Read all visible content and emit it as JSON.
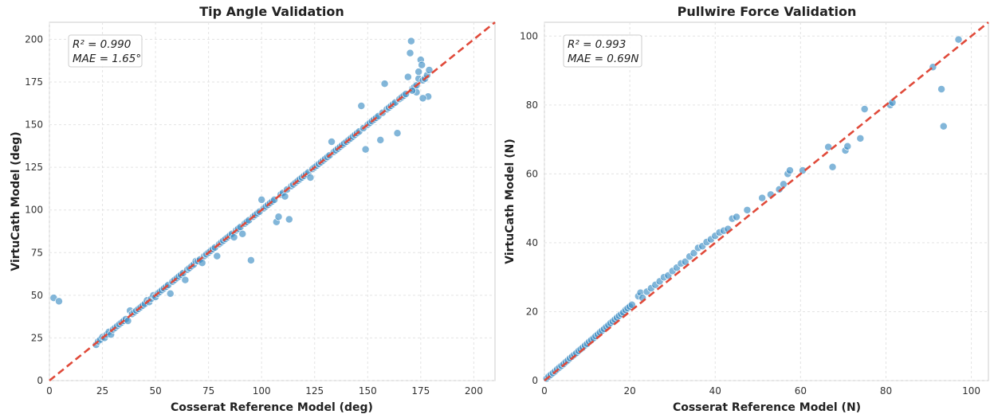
{
  "chart_data": [
    {
      "type": "scatter",
      "title": "Tip Angle Validation",
      "xlabel": "Cosserat Reference Model (deg)",
      "ylabel": "VirtuCath Model (deg)",
      "xlim": [
        0,
        210
      ],
      "ylim": [
        0,
        210
      ],
      "xticks": [
        0,
        25,
        50,
        75,
        100,
        125,
        150,
        175,
        200
      ],
      "yticks": [
        0,
        25,
        50,
        75,
        100,
        125,
        150,
        175,
        200
      ],
      "grid": true,
      "identity_line": {
        "color": "#e04a3a",
        "style": "dashed"
      },
      "stats": {
        "r2": "R² = 0.990",
        "mae": "MAE = 1.65°"
      },
      "point_color": "#3f8fc4",
      "points": [
        [
          2,
          48.5
        ],
        [
          4.5,
          46.5
        ],
        [
          22,
          21
        ],
        [
          23,
          23
        ],
        [
          24,
          24
        ],
        [
          25,
          25.5
        ],
        [
          26,
          25
        ],
        [
          27,
          27
        ],
        [
          28,
          28.5
        ],
        [
          29,
          27
        ],
        [
          30,
          30
        ],
        [
          31,
          31
        ],
        [
          32,
          32
        ],
        [
          33,
          33
        ],
        [
          34,
          34
        ],
        [
          35,
          35
        ],
        [
          36,
          36
        ],
        [
          37,
          35
        ],
        [
          38,
          41
        ],
        [
          39,
          39
        ],
        [
          40,
          40
        ],
        [
          41,
          41
        ],
        [
          42,
          42
        ],
        [
          43,
          43
        ],
        [
          44,
          44
        ],
        [
          45,
          45
        ],
        [
          46,
          47
        ],
        [
          47,
          46
        ],
        [
          48,
          48
        ],
        [
          49,
          50
        ],
        [
          50,
          49
        ],
        [
          51,
          51
        ],
        [
          52,
          52
        ],
        [
          53,
          53
        ],
        [
          54,
          54
        ],
        [
          55,
          55
        ],
        [
          56,
          56
        ],
        [
          57,
          51
        ],
        [
          58,
          58
        ],
        [
          59,
          59
        ],
        [
          60,
          60
        ],
        [
          61,
          61
        ],
        [
          62,
          62
        ],
        [
          63,
          63
        ],
        [
          64,
          59
        ],
        [
          65,
          65
        ],
        [
          66,
          66
        ],
        [
          67,
          67
        ],
        [
          68,
          68
        ],
        [
          69,
          70
        ],
        [
          70,
          70
        ],
        [
          71,
          71
        ],
        [
          72,
          69
        ],
        [
          73,
          73
        ],
        [
          74,
          74
        ],
        [
          75,
          75
        ],
        [
          76,
          76
        ],
        [
          77,
          77
        ],
        [
          78,
          78
        ],
        [
          79,
          73
        ],
        [
          80,
          80
        ],
        [
          81,
          81
        ],
        [
          82,
          82
        ],
        [
          83,
          83
        ],
        [
          84,
          84
        ],
        [
          85,
          85
        ],
        [
          86,
          86
        ],
        [
          87,
          84
        ],
        [
          88,
          88
        ],
        [
          89,
          89
        ],
        [
          90,
          90
        ],
        [
          91,
          86
        ],
        [
          92,
          92
        ],
        [
          93,
          93
        ],
        [
          94,
          94
        ],
        [
          95,
          70.5
        ],
        [
          96,
          96
        ],
        [
          97,
          97
        ],
        [
          98,
          98
        ],
        [
          99,
          99
        ],
        [
          100,
          106
        ],
        [
          101,
          101
        ],
        [
          102,
          102
        ],
        [
          103,
          103
        ],
        [
          104,
          104
        ],
        [
          105,
          105
        ],
        [
          106,
          106
        ],
        [
          107,
          93
        ],
        [
          108,
          96
        ],
        [
          109,
          109
        ],
        [
          110,
          110
        ],
        [
          111,
          108
        ],
        [
          112,
          112
        ],
        [
          113,
          94.5
        ],
        [
          114,
          114
        ],
        [
          115,
          115
        ],
        [
          116,
          116
        ],
        [
          117,
          117
        ],
        [
          118,
          118
        ],
        [
          119,
          119
        ],
        [
          120,
          120
        ],
        [
          121,
          121
        ],
        [
          122,
          122
        ],
        [
          123,
          119
        ],
        [
          124,
          124
        ],
        [
          125,
          125
        ],
        [
          126,
          126
        ],
        [
          127,
          127
        ],
        [
          128,
          128
        ],
        [
          129,
          129
        ],
        [
          130,
          130
        ],
        [
          131,
          131
        ],
        [
          132,
          132
        ],
        [
          133,
          140
        ],
        [
          134,
          134
        ],
        [
          135,
          135
        ],
        [
          136,
          136
        ],
        [
          137,
          137
        ],
        [
          138,
          138
        ],
        [
          139,
          139
        ],
        [
          140,
          140
        ],
        [
          141,
          141
        ],
        [
          142,
          142
        ],
        [
          143,
          143
        ],
        [
          144,
          144
        ],
        [
          145,
          145
        ],
        [
          146,
          146
        ],
        [
          147,
          161
        ],
        [
          148,
          148
        ],
        [
          149,
          135.5
        ],
        [
          150,
          150
        ],
        [
          151,
          151
        ],
        [
          152,
          152
        ],
        [
          153,
          153
        ],
        [
          154,
          154
        ],
        [
          155,
          155
        ],
        [
          156,
          141
        ],
        [
          157,
          157
        ],
        [
          158,
          174
        ],
        [
          159,
          159
        ],
        [
          160,
          160
        ],
        [
          161,
          161
        ],
        [
          162,
          162
        ],
        [
          163,
          163
        ],
        [
          164,
          145
        ],
        [
          165,
          165
        ],
        [
          166,
          166
        ],
        [
          167,
          167
        ],
        [
          168,
          168
        ],
        [
          169,
          178
        ],
        [
          170,
          192
        ],
        [
          170.5,
          199
        ],
        [
          171,
          171
        ],
        [
          172,
          172
        ],
        [
          173,
          173
        ],
        [
          174,
          177
        ],
        [
          175,
          188
        ],
        [
          175.5,
          185
        ],
        [
          176,
          176
        ],
        [
          177,
          177
        ],
        [
          178,
          179
        ],
        [
          178.5,
          166.5
        ],
        [
          179,
          182
        ],
        [
          176,
          165.5
        ],
        [
          173,
          169
        ],
        [
          171,
          170
        ],
        [
          174,
          181
        ]
      ]
    },
    {
      "type": "scatter",
      "title": "Pullwire Force Validation",
      "xlabel": "Cosserat Reference Model (N)",
      "ylabel": "VirtuCath Model (N)",
      "xlim": [
        0,
        104
      ],
      "ylim": [
        0,
        104
      ],
      "xticks": [
        0,
        20,
        40,
        60,
        80,
        100
      ],
      "yticks": [
        0,
        20,
        40,
        60,
        80,
        100
      ],
      "grid": true,
      "identity_line": {
        "color": "#e04a3a",
        "style": "dashed"
      },
      "stats": {
        "r2": "R² = 0.993",
        "mae": "MAE = 0.69N"
      },
      "point_color": "#3f8fc4",
      "points": [
        [
          0.5,
          0.6
        ],
        [
          1,
          1.2
        ],
        [
          1.5,
          1.7
        ],
        [
          2,
          2.2
        ],
        [
          2.5,
          2.7
        ],
        [
          3,
          3.3
        ],
        [
          3.5,
          3.8
        ],
        [
          4,
          4.3
        ],
        [
          4.5,
          4.8
        ],
        [
          5,
          5.4
        ],
        [
          5.5,
          5.9
        ],
        [
          6,
          6.5
        ],
        [
          6.5,
          7.0
        ],
        [
          7,
          7.5
        ],
        [
          7.5,
          8.0
        ],
        [
          8,
          8.6
        ],
        [
          8.5,
          9.1
        ],
        [
          9,
          9.6
        ],
        [
          9.5,
          10.2
        ],
        [
          10,
          10.7
        ],
        [
          10.5,
          11.3
        ],
        [
          11,
          11.8
        ],
        [
          11.5,
          12.3
        ],
        [
          12,
          12.9
        ],
        [
          12.5,
          13.4
        ],
        [
          13,
          14.0
        ],
        [
          13.5,
          14.5
        ],
        [
          14,
          15.0
        ],
        [
          14.5,
          15.6
        ],
        [
          15,
          16.1
        ],
        [
          15.5,
          16.7
        ],
        [
          16,
          17.2
        ],
        [
          16.5,
          17.7
        ],
        [
          17,
          18.3
        ],
        [
          17.5,
          18.8
        ],
        [
          18,
          19.3
        ],
        [
          18.5,
          19.8
        ],
        [
          19,
          20.5
        ],
        [
          19.5,
          21.0
        ],
        [
          20,
          21.5
        ],
        [
          20.5,
          22.0
        ],
        [
          22,
          24.5
        ],
        [
          22.5,
          25.5
        ],
        [
          23,
          24.0
        ],
        [
          24,
          25.8
        ],
        [
          25,
          26.8
        ],
        [
          26,
          27.8
        ],
        [
          27,
          28.8
        ],
        [
          28,
          30.0
        ],
        [
          29,
          30.5
        ],
        [
          30,
          31.8
        ],
        [
          31,
          32.8
        ],
        [
          32,
          34.0
        ],
        [
          33,
          34.5
        ],
        [
          34,
          36.0
        ],
        [
          35,
          37.0
        ],
        [
          36,
          38.5
        ],
        [
          37,
          39.0
        ],
        [
          38,
          40.2
        ],
        [
          39,
          41.0
        ],
        [
          40,
          42.0
        ],
        [
          41,
          43.0
        ],
        [
          42,
          43.5
        ],
        [
          43,
          44.0
        ],
        [
          44,
          47.0
        ],
        [
          45,
          47.5
        ],
        [
          47.5,
          49.5
        ],
        [
          51,
          53.0
        ],
        [
          53,
          54.0
        ],
        [
          55,
          55.5
        ],
        [
          56,
          57.0
        ],
        [
          57,
          60.0
        ],
        [
          57.5,
          61.0
        ],
        [
          60.5,
          61.0
        ],
        [
          66.5,
          67.8
        ],
        [
          67.5,
          62.0
        ],
        [
          70.5,
          66.8
        ],
        [
          71,
          68.0
        ],
        [
          74,
          70.3
        ],
        [
          75,
          78.8
        ],
        [
          81,
          80.0
        ],
        [
          81.5,
          80.7
        ],
        [
          91,
          91.0
        ],
        [
          93,
          84.6
        ],
        [
          93.5,
          73.8
        ],
        [
          97,
          99.0
        ]
      ]
    }
  ]
}
